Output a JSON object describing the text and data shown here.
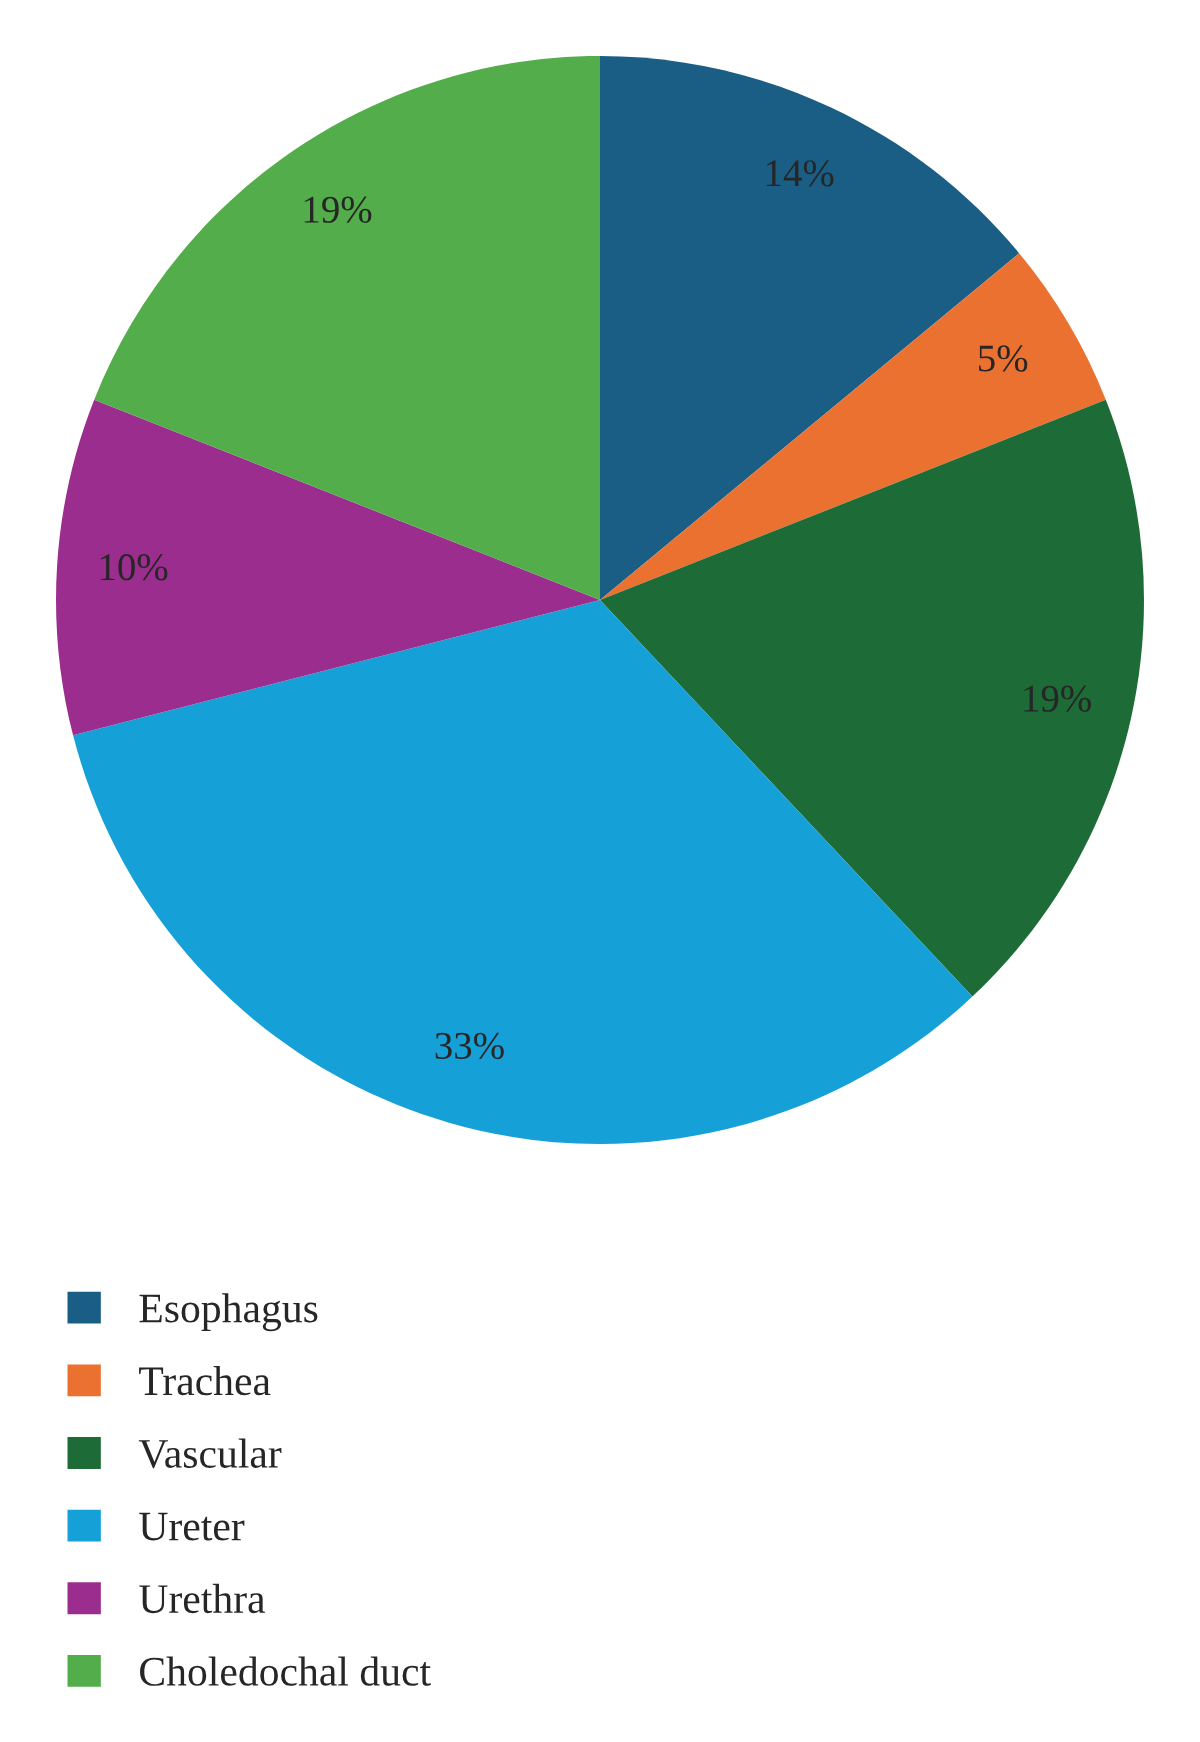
{
  "chart_data": {
    "type": "pie",
    "categories": [
      "Esophagus",
      "Trachea",
      "Vascular",
      "Ureter",
      "Urethra",
      "Choledochal duct"
    ],
    "values": [
      14,
      5,
      19,
      33,
      10,
      19
    ],
    "value_labels": [
      "14%",
      "5%",
      "19%",
      "33%",
      "10%",
      "19%"
    ],
    "colors": [
      "#1a5e85",
      "#eb7131",
      "#1d6b37",
      "#16a0d8",
      "#9b2d8e",
      "#53ad4a"
    ],
    "legend": "bottom"
  }
}
